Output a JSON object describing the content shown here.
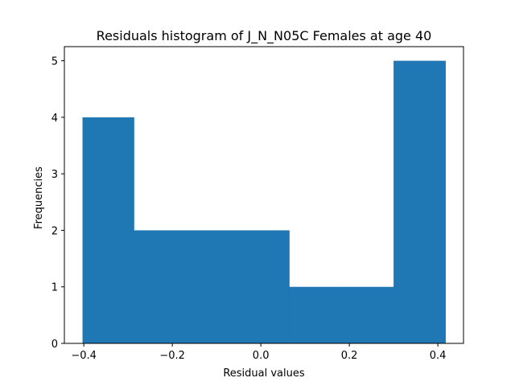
{
  "chart_data": {
    "type": "bar",
    "title": "Residuals histogram of J_N_N05C Females at age 40",
    "xlabel": "Residual values",
    "ylabel": "Frequencies",
    "bins": [
      {
        "x0": -0.403,
        "x1": -0.287,
        "count": 4
      },
      {
        "x0": -0.287,
        "x1": -0.171,
        "count": 2
      },
      {
        "x0": -0.171,
        "x1": -0.054,
        "count": 2
      },
      {
        "x0": -0.054,
        "x1": 0.064,
        "count": 2
      },
      {
        "x0": 0.064,
        "x1": 0.181,
        "count": 1
      },
      {
        "x0": 0.181,
        "x1": 0.3,
        "count": 1
      },
      {
        "x0": 0.3,
        "x1": 0.417,
        "count": 5
      }
    ],
    "xlim": [
      -0.444,
      0.458
    ],
    "ylim": [
      0,
      5.25
    ],
    "xticks": [
      -0.4,
      -0.2,
      0.0,
      0.2,
      0.4
    ],
    "xtick_labels": [
      "−0.4",
      "−0.2",
      "0.0",
      "0.2",
      "0.4"
    ],
    "yticks": [
      0,
      1,
      2,
      3,
      4,
      5
    ],
    "ytick_labels": [
      "0",
      "1",
      "2",
      "3",
      "4",
      "5"
    ],
    "grid": false,
    "bar_color": "#1f77b4"
  }
}
